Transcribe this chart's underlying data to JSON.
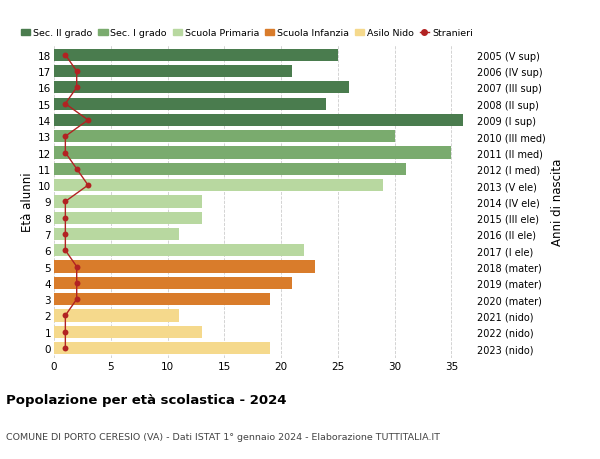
{
  "ages": [
    18,
    17,
    16,
    15,
    14,
    13,
    12,
    11,
    10,
    9,
    8,
    7,
    6,
    5,
    4,
    3,
    2,
    1,
    0
  ],
  "years": [
    "2005 (V sup)",
    "2006 (IV sup)",
    "2007 (III sup)",
    "2008 (II sup)",
    "2009 (I sup)",
    "2010 (III med)",
    "2011 (II med)",
    "2012 (I med)",
    "2013 (V ele)",
    "2014 (IV ele)",
    "2015 (III ele)",
    "2016 (II ele)",
    "2017 (I ele)",
    "2018 (mater)",
    "2019 (mater)",
    "2020 (mater)",
    "2021 (nido)",
    "2022 (nido)",
    "2023 (nido)"
  ],
  "bar_values": [
    25,
    21,
    26,
    24,
    36,
    30,
    35,
    31,
    29,
    13,
    13,
    11,
    22,
    23,
    21,
    19,
    11,
    13,
    19
  ],
  "bar_colors": [
    "#4a7c4e",
    "#4a7c4e",
    "#4a7c4e",
    "#4a7c4e",
    "#4a7c4e",
    "#7aab6e",
    "#7aab6e",
    "#7aab6e",
    "#b8d8a0",
    "#b8d8a0",
    "#b8d8a0",
    "#b8d8a0",
    "#b8d8a0",
    "#d97c2b",
    "#d97c2b",
    "#d97c2b",
    "#f5d98c",
    "#f5d98c",
    "#f5d98c"
  ],
  "stranieri_values": [
    1,
    2,
    2,
    1,
    3,
    1,
    1,
    2,
    3,
    1,
    1,
    1,
    1,
    2,
    2,
    2,
    1,
    1,
    1
  ],
  "stranieri_color": "#b22222",
  "legend_labels": [
    "Sec. II grado",
    "Sec. I grado",
    "Scuola Primaria",
    "Scuola Infanzia",
    "Asilo Nido",
    "Stranieri"
  ],
  "legend_colors": [
    "#4a7c4e",
    "#7aab6e",
    "#b8d8a0",
    "#d97c2b",
    "#f5d98c",
    "#b22222"
  ],
  "title": "Popolazione per età scolastica - 2024",
  "subtitle": "COMUNE DI PORTO CERESIO (VA) - Dati ISTAT 1° gennaio 2024 - Elaborazione TUTTITALIA.IT",
  "ylabel_left": "Età alunni",
  "ylabel_right": "Anni di nascita",
  "xlim": [
    0,
    37
  ],
  "xticks": [
    0,
    5,
    10,
    15,
    20,
    25,
    30,
    35
  ],
  "background_color": "#ffffff",
  "bar_height": 0.75,
  "grid_color": "#cccccc"
}
